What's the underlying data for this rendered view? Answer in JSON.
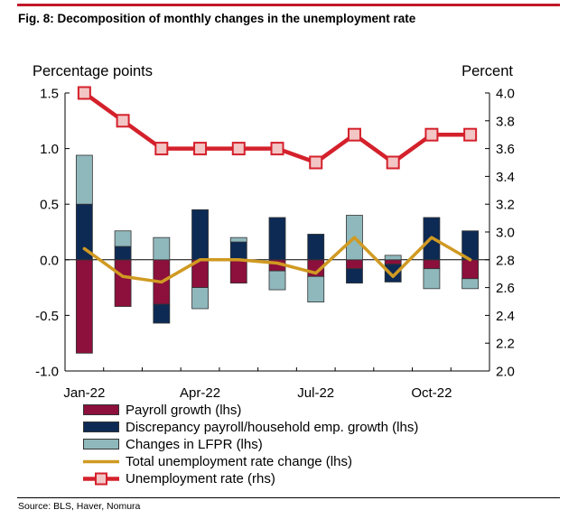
{
  "figure": {
    "title": "Fig. 8: Decomposition of monthly changes in the unemployment rate",
    "source": "Source: BLS, Haver, Nomura"
  },
  "chart_data": {
    "type": "bar",
    "stacked": true,
    "left_axis_label": "Percentage points",
    "right_axis_label": "Percent",
    "left_ylim": [
      -1.0,
      1.5
    ],
    "right_ylim": [
      2.0,
      4.0
    ],
    "left_ticks": [
      "1.5",
      "1.0",
      "0.5",
      "0.0",
      "-0.5",
      "-1.0"
    ],
    "right_ticks": [
      "4.0",
      "3.8",
      "3.6",
      "3.4",
      "3.2",
      "3.0",
      "2.8",
      "2.6",
      "2.4",
      "2.2",
      "2.0"
    ],
    "categories": [
      "Jan-22",
      "Feb-22",
      "Mar-22",
      "Apr-22",
      "May-22",
      "Jun-22",
      "Jul-22",
      "Aug-22",
      "Sep-22",
      "Oct-22",
      "Nov-22"
    ],
    "x_tick_labels": [
      {
        "index": 0,
        "label": "Jan-22"
      },
      {
        "index": 3,
        "label": "Apr-22"
      },
      {
        "index": 6,
        "label": "Jul-22"
      },
      {
        "index": 9,
        "label": "Oct-22"
      }
    ],
    "grid": false,
    "legend_position": "bottom",
    "series": [
      {
        "name": "Payroll growth (lhs)",
        "kind": "bar",
        "axis": "left",
        "color": "#8c0f3c",
        "values": [
          -0.84,
          -0.42,
          -0.4,
          -0.25,
          -0.21,
          -0.1,
          -0.15,
          -0.08,
          -0.04,
          -0.08,
          -0.17
        ]
      },
      {
        "name": "Discrepancy payroll/household emp. growth (lhs)",
        "kind": "bar",
        "axis": "left",
        "color": "#0d2a55",
        "values": [
          0.5,
          0.12,
          -0.17,
          0.45,
          0.16,
          0.38,
          0.23,
          -0.13,
          -0.16,
          0.38,
          0.26
        ]
      },
      {
        "name": "Changes in LFPR (lhs)",
        "kind": "bar",
        "axis": "left",
        "color": "#8fb8bc",
        "values": [
          0.44,
          0.14,
          0.2,
          -0.19,
          0.04,
          -0.17,
          -0.23,
          0.4,
          0.04,
          -0.18,
          -0.09
        ]
      },
      {
        "name": "Total unemployment rate change (lhs)",
        "kind": "line",
        "axis": "left",
        "color": "#d09a22",
        "values": [
          0.1,
          -0.15,
          -0.2,
          0.0,
          0.0,
          -0.03,
          -0.12,
          0.2,
          -0.15,
          0.2,
          0.0
        ]
      },
      {
        "name": "Unemployment rate (rhs)",
        "kind": "line",
        "axis": "right",
        "color": "#d4212c",
        "marker_fill": "#f3c6c6",
        "values": [
          4.0,
          3.8,
          3.6,
          3.6,
          3.6,
          3.6,
          3.5,
          3.7,
          3.5,
          3.7,
          3.7
        ]
      }
    ]
  }
}
